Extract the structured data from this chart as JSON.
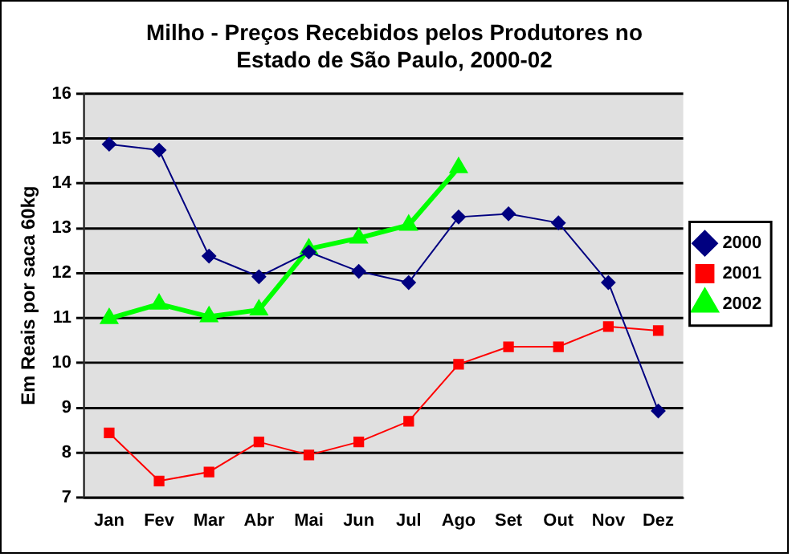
{
  "chart_data": {
    "type": "line",
    "title": [
      "Milho - Preços Recebidos pelos Produtores no",
      "Estado de São Paulo, 2000-02"
    ],
    "ylabel": "Em Reais por saca 60kg",
    "categories": [
      "Jan",
      "Fev",
      "Mar",
      "Abr",
      "Mai",
      "Jun",
      "Jul",
      "Ago",
      "Set",
      "Out",
      "Nov",
      "Dez"
    ],
    "series": [
      {
        "name": "2000",
        "color": "#000080",
        "marker": "diamond",
        "values": [
          14.87,
          14.74,
          12.38,
          11.92,
          12.47,
          12.04,
          11.79,
          13.25,
          13.32,
          13.12,
          11.79,
          8.93
        ]
      },
      {
        "name": "2001",
        "color": "#ff0000",
        "marker": "square",
        "values": [
          8.44,
          7.37,
          7.57,
          8.24,
          7.95,
          8.24,
          8.7,
          9.97,
          10.36,
          10.36,
          10.81,
          10.72
        ]
      },
      {
        "name": "2002",
        "color": "#00ff00",
        "marker": "triangle",
        "values": [
          10.99,
          11.31,
          11.03,
          11.18,
          12.54,
          12.78,
          13.07,
          14.35,
          null,
          null,
          null,
          null
        ]
      }
    ],
    "ylim": [
      7,
      16
    ],
    "yticks": [
      7,
      8,
      9,
      10,
      11,
      12,
      13,
      14,
      15,
      16
    ],
    "grid": "y",
    "legend": "right"
  }
}
